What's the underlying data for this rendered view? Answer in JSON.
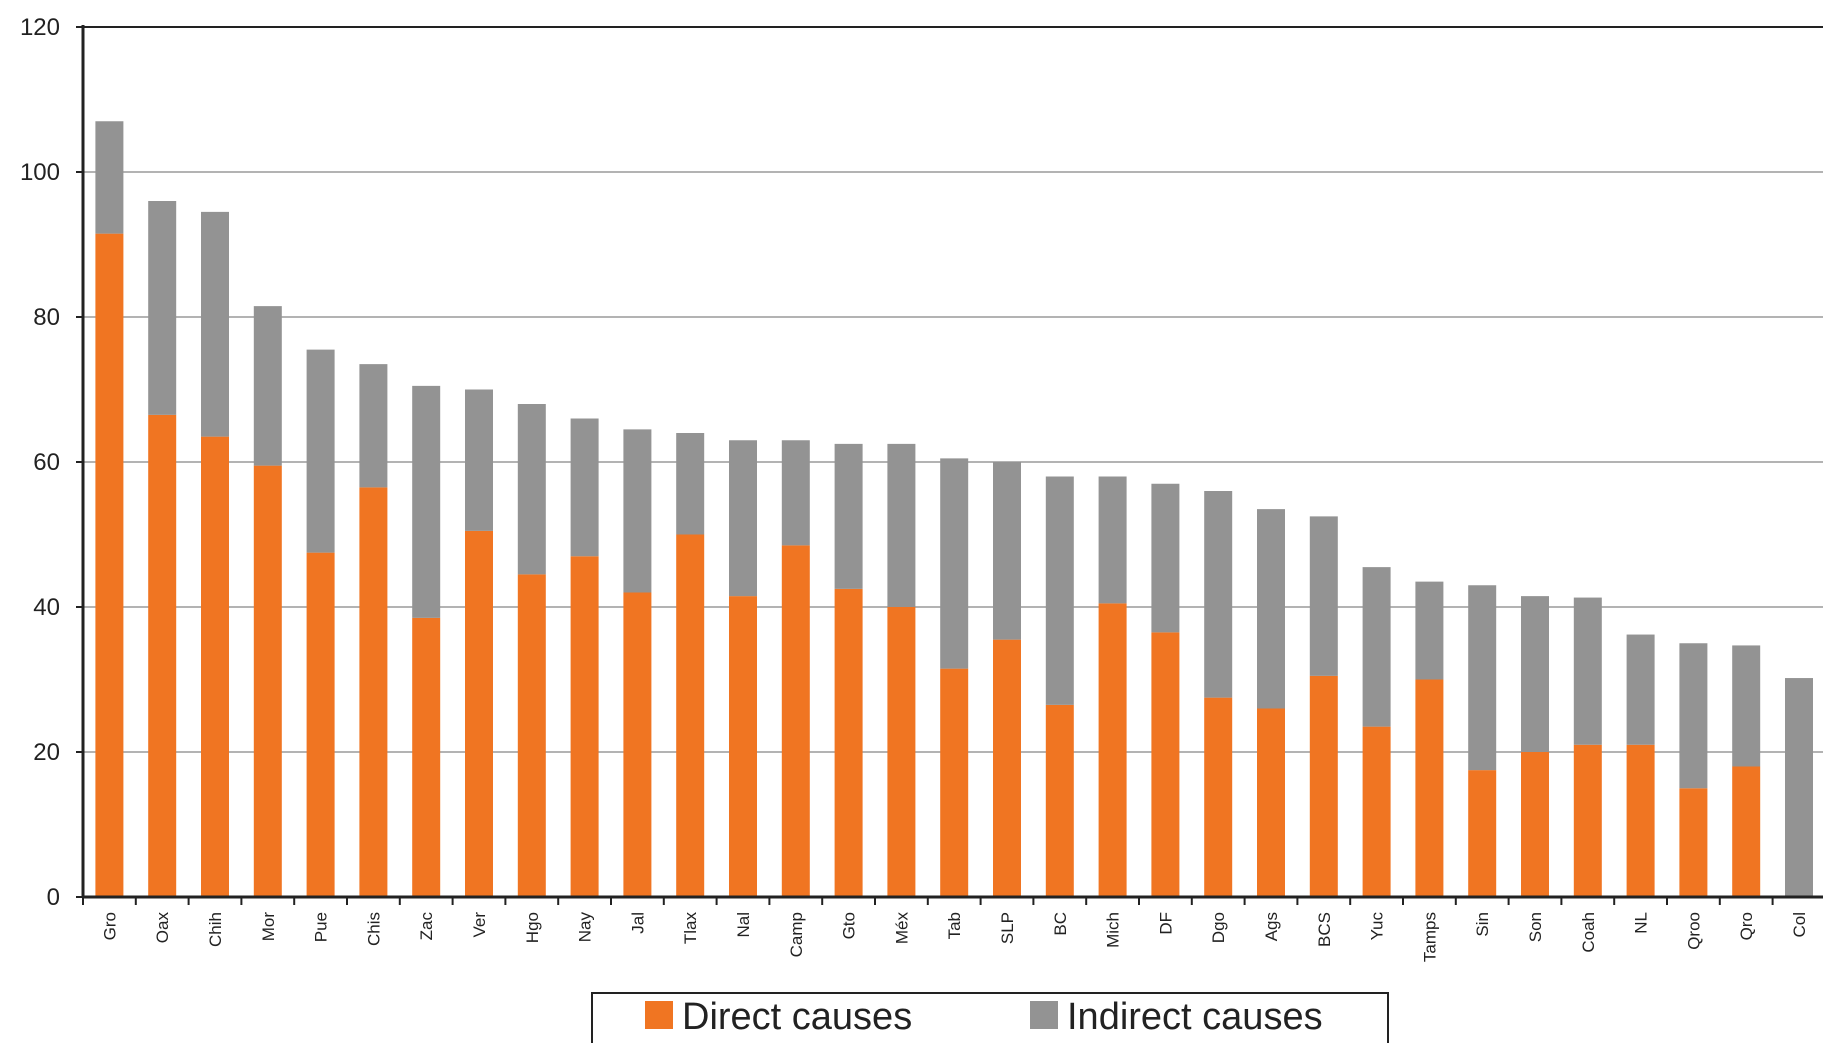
{
  "chart_data": {
    "type": "bar",
    "stacked": true,
    "categories": [
      "Gro",
      "Oax",
      "Chih",
      "Mor",
      "Pue",
      "Chis",
      "Zac",
      "Ver",
      "Hgo",
      "Nay",
      "Jal",
      "Tlax",
      "Nal",
      "Camp",
      "Gto",
      "Méx",
      "Tab",
      "SLP",
      "BC",
      "Mich",
      "DF",
      "Dgo",
      "Ags",
      "BCS",
      "Yuc",
      "Tamps",
      "Sin",
      "Son",
      "Coah",
      "NL",
      "Qroo",
      "Qro",
      "Col"
    ],
    "series": [
      {
        "name": "Direct causes",
        "color": "#f07522",
        "values": [
          91.5,
          66.5,
          63.5,
          59.5,
          47.5,
          56.5,
          38.5,
          50.5,
          44.5,
          47.0,
          42.0,
          50.0,
          41.5,
          48.5,
          42.5,
          40.0,
          31.5,
          35.5,
          26.5,
          40.5,
          36.5,
          27.5,
          26.0,
          30.5,
          23.5,
          30.0,
          17.5,
          20.0,
          21.0,
          21.0,
          15.0,
          18.0,
          0
        ]
      },
      {
        "name": "Indirect causes",
        "color": "#939393",
        "values": [
          15.5,
          29.5,
          31.0,
          22.0,
          28.0,
          17.0,
          32.0,
          19.5,
          23.5,
          19.0,
          22.5,
          14.0,
          21.5,
          14.5,
          20.0,
          22.5,
          29.0,
          24.5,
          31.5,
          17.5,
          20.5,
          28.5,
          27.5,
          22.0,
          22.0,
          13.5,
          25.5,
          21.5,
          20.3,
          15.2,
          20.0,
          16.7,
          30.2
        ]
      }
    ],
    "yticks": [
      "0",
      "20",
      "40",
      "60",
      "80",
      "100",
      "120"
    ],
    "ylim": [
      0,
      120
    ],
    "grid": true,
    "legend_position": "bottom-center",
    "title": "",
    "xlabel": "",
    "ylabel": ""
  }
}
